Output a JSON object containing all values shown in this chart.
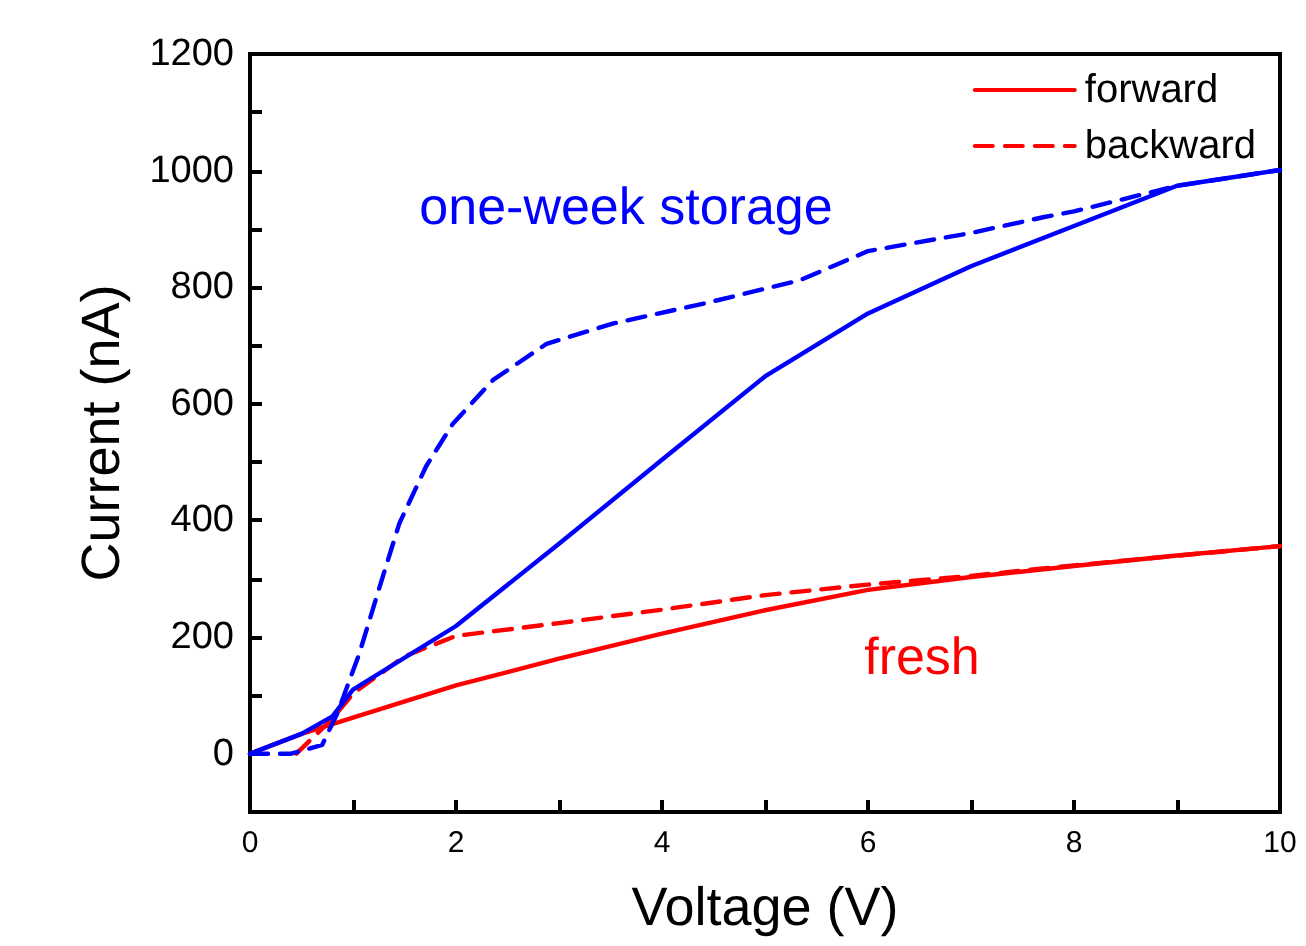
{
  "chart_data": {
    "type": "line",
    "xlabel": "Voltage (V)",
    "ylabel": "Current (nA)",
    "xlim": [
      0,
      10
    ],
    "ylim": [
      -100,
      1200
    ],
    "xticks": [
      0,
      {
        "value": 1,
        "label": null
      },
      2,
      {
        "value": 3,
        "label": null
      },
      4,
      {
        "value": 5,
        "label": null
      },
      6,
      {
        "value": 7,
        "label": null
      },
      8,
      {
        "value": 9,
        "label": null
      },
      10
    ],
    "yticks": [
      0,
      {
        "value": 100,
        "label": null
      },
      200,
      {
        "value": 300,
        "label": null
      },
      400,
      {
        "value": 500,
        "label": null
      },
      600,
      {
        "value": 700,
        "label": null
      },
      800,
      {
        "value": 900,
        "label": null
      },
      1000,
      {
        "value": 1100,
        "label": null
      },
      1200
    ],
    "grid": false,
    "legend": "top right",
    "marker": "none",
    "series": [
      {
        "name": "forward",
        "color": "#ff0000",
        "line_style": "solid",
        "x": [
          0,
          0.5,
          1,
          2,
          3,
          4,
          5,
          6,
          7,
          8,
          9,
          10
        ],
        "values": [
          0,
          34,
          62,
          117,
          163,
          206,
          246,
          281,
          303,
          322,
          340,
          356
        ]
      },
      {
        "name": "backward",
        "color": "#ff0000",
        "line_style": "dashed",
        "x": [
          0.45,
          0.8,
          1,
          1.5,
          2,
          3,
          4,
          5,
          6,
          7,
          8,
          10
        ],
        "values": [
          0,
          60,
          103,
          167,
          202,
          224,
          247,
          272,
          290,
          305,
          323,
          356
        ]
      },
      {
        "color": "#0000ff",
        "line_style": "solid",
        "x": [
          0,
          0.5,
          0.8,
          1,
          2,
          3,
          4,
          5,
          6,
          7,
          8,
          9,
          10
        ],
        "values": [
          0,
          34,
          64,
          110,
          219,
          360,
          504,
          647,
          755,
          836,
          905,
          974,
          1001
        ]
      },
      {
        "color": "#0000ff",
        "line_style": "dashed",
        "x": [
          0,
          0.4,
          0.7,
          0.85,
          1.06,
          1.26,
          1.45,
          1.71,
          1.97,
          2.36,
          2.88,
          3.53,
          4.43,
          5.34,
          6,
          7,
          7.7,
          8,
          9,
          10
        ],
        "values": [
          0,
          0,
          15,
          70,
          171,
          287,
          395,
          493,
          566,
          641,
          703,
          738,
          773,
          812,
          862,
          893,
          920,
          930,
          974,
          1001
        ]
      }
    ],
    "annotations": [
      "one-week storage",
      "fresh"
    ]
  }
}
